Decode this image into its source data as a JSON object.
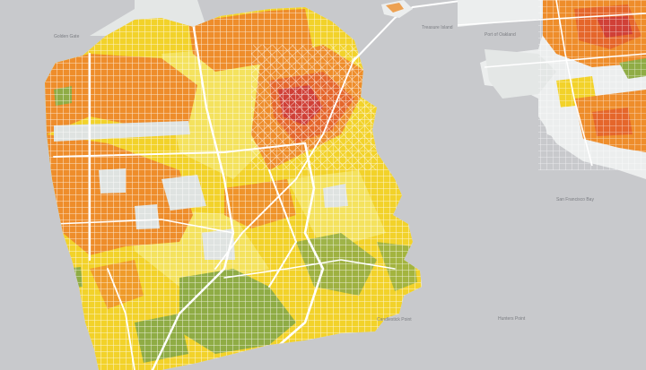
{
  "map": {
    "region": "san-francisco-and-oakland",
    "colors": {
      "water": "#c8c9cc",
      "land": "#eceeee",
      "park": "#dfe3e1",
      "road": "#ffffff",
      "green": "#8fac45",
      "yellow": "#f2d22a",
      "light_yellow": "#f4e25e",
      "orange": "#ee8d2b",
      "red_orange": "#e5662b",
      "dark_red": "#cc3a3a"
    },
    "scale_levels": [
      "green",
      "light_yellow",
      "yellow",
      "orange",
      "red_orange",
      "dark_red"
    ],
    "labels": {
      "presidio": "Golden Gate",
      "treasure": "Treasure Island",
      "oak_port": "Port of Oakland",
      "bay": "San Francisco Bay",
      "hunters": "Hunters Point",
      "candlestick": "Candlestick Point"
    }
  }
}
